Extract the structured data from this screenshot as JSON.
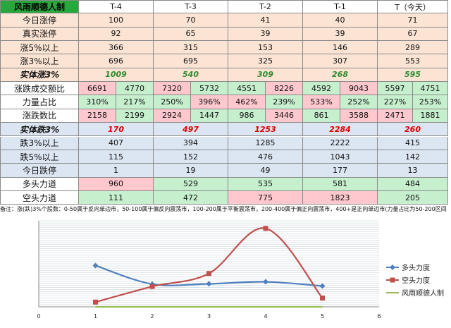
{
  "table": {
    "header": {
      "label": "风雨顺德人制",
      "cols": [
        "T-4",
        "T-3",
        "T-2",
        "T-1",
        "T（今天）"
      ]
    },
    "rows_top": [
      {
        "label": "今日涨停",
        "values": [
          "100",
          "70",
          "41",
          "40",
          "71"
        ]
      },
      {
        "label": "真实涨停",
        "values": [
          "92",
          "65",
          "39",
          "39",
          "67"
        ]
      },
      {
        "label": "涨5%以上",
        "values": [
          "366",
          "315",
          "153",
          "146",
          "289"
        ]
      },
      {
        "label": "涨3%以上",
        "values": [
          "696",
          "695",
          "325",
          "307",
          "553"
        ]
      }
    ],
    "up_summary": {
      "label": "实体涨3%",
      "values": [
        "1009",
        "540",
        "309",
        "268",
        "595"
      ]
    },
    "pair_rows": [
      {
        "label": "涨跌成交额比",
        "values": [
          [
            "6691",
            "4770"
          ],
          [
            "7320",
            "5732"
          ],
          [
            "4551",
            "8226"
          ],
          [
            "4592",
            "9043"
          ],
          [
            "5597",
            "4751"
          ]
        ]
      },
      {
        "label": "力量占比",
        "values": [
          [
            "310%",
            "217%"
          ],
          [
            "250%",
            "396%"
          ],
          [
            "462%",
            "239%"
          ],
          [
            "533%",
            "252%"
          ],
          [
            "227%",
            "253%"
          ]
        ]
      },
      {
        "label": "涨跌数比",
        "values": [
          [
            "2158",
            "2199"
          ],
          [
            "2924",
            "1447"
          ],
          [
            "986",
            "3446"
          ],
          [
            "861",
            "3588"
          ],
          [
            "2471",
            "1881"
          ]
        ]
      }
    ],
    "down_summary": {
      "label": "实体跌3%",
      "values": [
        "170",
        "497",
        "1253",
        "2284",
        "260"
      ]
    },
    "rows_bottom": [
      {
        "label": "跌3%以上",
        "values": [
          "407",
          "394",
          "1285",
          "2222",
          "415"
        ]
      },
      {
        "label": "跌5%以上",
        "values": [
          "115",
          "152",
          "476",
          "1043",
          "142"
        ]
      },
      {
        "label": "今日跌停",
        "values": [
          "1",
          "19",
          "49",
          "177",
          "13"
        ]
      }
    ],
    "force_rows": [
      {
        "label": "多头力道",
        "values": [
          "960",
          "529",
          "535",
          "581",
          "484"
        ]
      },
      {
        "label": "空头力道",
        "values": [
          "111",
          "472",
          "775",
          "1823",
          "205"
        ]
      }
    ],
    "note": "备注：涨(跌)3%个股数：0-50属于反向单边市，50-100属于偏反向震荡市，100-200属于平衡震荡市，200-400属于偏正向震荡市，400+是正向单边市(力量占比为50-200区间"
  },
  "colors": {
    "header_green": "#28a83c",
    "peach": "#fce4d4",
    "blue": "#dce6f2",
    "pink": "#ffc7ce",
    "light_green": "#c6efce",
    "bull": "#4f81bd",
    "bear": "#c0504d",
    "third": "#9bbb59"
  },
  "chart_data": {
    "type": "line",
    "x": [
      1,
      2,
      3,
      4,
      5
    ],
    "xlim": [
      0,
      6
    ],
    "x_ticks": [
      "0",
      "1",
      "2",
      "3",
      "4",
      "5",
      "6"
    ],
    "ylim": [
      0,
      2000
    ],
    "series": [
      {
        "name": "多头力度",
        "values": [
          960,
          529,
          535,
          581,
          484
        ],
        "color": "#4f81bd",
        "marker": "diamond"
      },
      {
        "name": "空头力度",
        "values": [
          111,
          472,
          775,
          1823,
          205
        ],
        "color": "#c0504d",
        "marker": "square"
      },
      {
        "name": "风雨顺德人制",
        "values": [
          0,
          0,
          0,
          0,
          0
        ],
        "color": "#9bbb59",
        "marker": "none"
      }
    ],
    "grid": true,
    "legend": "right"
  }
}
